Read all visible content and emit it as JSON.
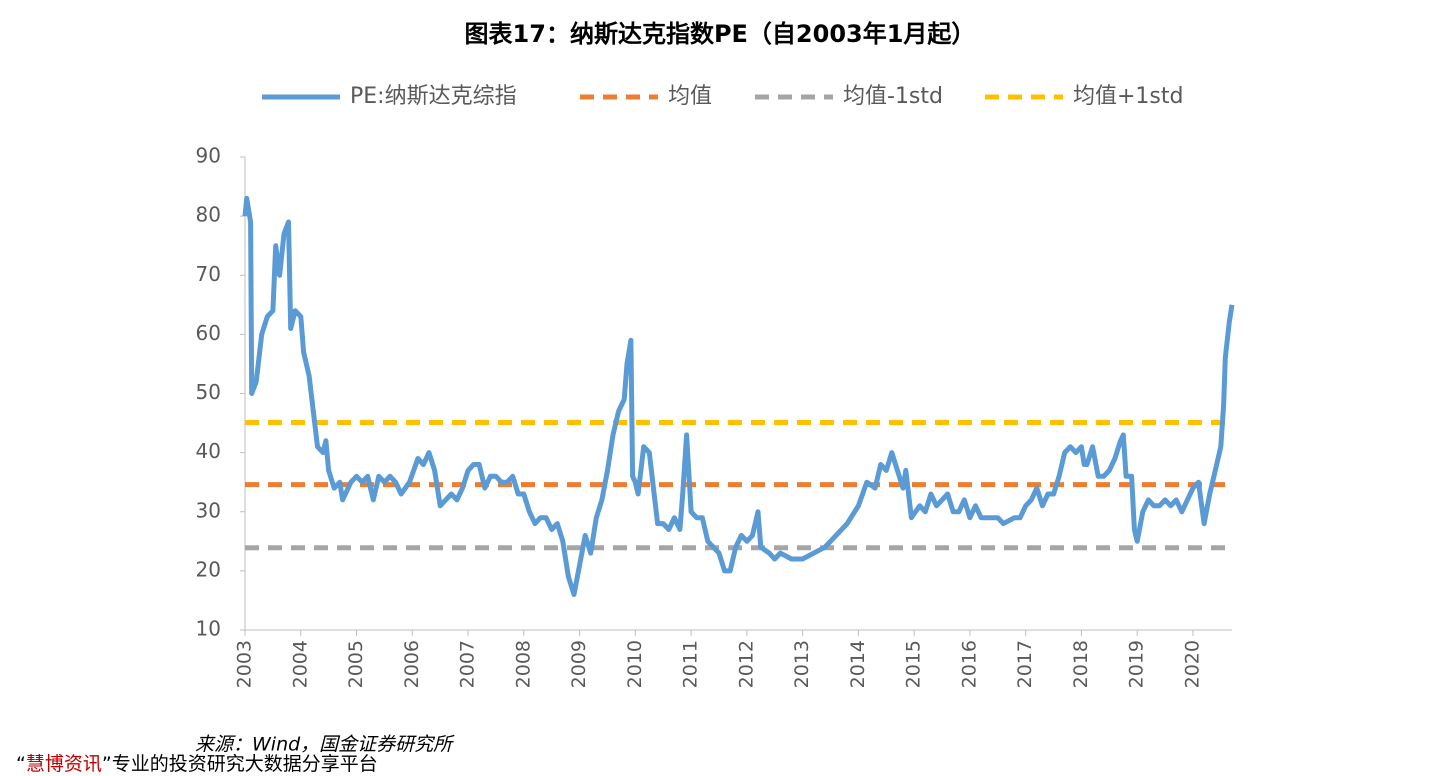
{
  "chart_data": {
    "type": "line",
    "title": "图表17：纳斯达克指数PE（自2003年1月起）",
    "xlim": [
      2003,
      2020.7
    ],
    "xticks": [
      2003,
      2004,
      2005,
      2006,
      2007,
      2008,
      2009,
      2010,
      2011,
      2012,
      2013,
      2014,
      2015,
      2016,
      2017,
      2018,
      2019,
      2020
    ],
    "ylim": [
      10,
      90
    ],
    "yticks": [
      10,
      20,
      30,
      40,
      50,
      60,
      70,
      80,
      90
    ],
    "legend": "top",
    "series": [
      {
        "name": "PE:纳斯达克综指",
        "color": "#5b9bd5",
        "dash": false,
        "x": [
          2003.0,
          2003.03,
          2003.1,
          2003.12,
          2003.2,
          2003.3,
          2003.4,
          2003.5,
          2003.55,
          2003.62,
          2003.7,
          2003.78,
          2003.82,
          2003.9,
          2004.0,
          2004.05,
          2004.15,
          2004.25,
          2004.3,
          2004.4,
          2004.45,
          2004.5,
          2004.6,
          2004.7,
          2004.75,
          2004.9,
          2005.0,
          2005.1,
          2005.2,
          2005.3,
          2005.4,
          2005.5,
          2005.6,
          2005.7,
          2005.8,
          2005.95,
          2006.1,
          2006.2,
          2006.3,
          2006.4,
          2006.5,
          2006.6,
          2006.7,
          2006.8,
          2006.9,
          2007.0,
          2007.1,
          2007.2,
          2007.3,
          2007.4,
          2007.5,
          2007.6,
          2007.7,
          2007.8,
          2007.9,
          2008.0,
          2008.1,
          2008.2,
          2008.3,
          2008.4,
          2008.5,
          2008.6,
          2008.7,
          2008.8,
          2008.9,
          2009.0,
          2009.1,
          2009.2,
          2009.3,
          2009.4,
          2009.5,
          2009.6,
          2009.7,
          2009.8,
          2009.85,
          2009.92,
          2009.95,
          2010.0,
          2010.05,
          2010.15,
          2010.25,
          2010.4,
          2010.5,
          2010.6,
          2010.7,
          2010.8,
          2010.85,
          2010.92,
          2011.0,
          2011.1,
          2011.2,
          2011.3,
          2011.5,
          2011.6,
          2011.7,
          2011.8,
          2011.9,
          2012.0,
          2012.1,
          2012.2,
          2012.25,
          2012.4,
          2012.5,
          2012.6,
          2012.8,
          2013.0,
          2013.2,
          2013.4,
          2013.6,
          2013.8,
          2014.0,
          2014.15,
          2014.3,
          2014.4,
          2014.5,
          2014.6,
          2014.7,
          2014.8,
          2014.85,
          2014.95,
          2015.1,
          2015.2,
          2015.3,
          2015.4,
          2015.5,
          2015.6,
          2015.7,
          2015.8,
          2015.9,
          2016.0,
          2016.1,
          2016.2,
          2016.4,
          2016.5,
          2016.6,
          2016.8,
          2016.9,
          2017.0,
          2017.1,
          2017.2,
          2017.3,
          2017.4,
          2017.5,
          2017.6,
          2017.7,
          2017.8,
          2017.9,
          2018.0,
          2018.05,
          2018.1,
          2018.2,
          2018.3,
          2018.4,
          2018.5,
          2018.6,
          2018.7,
          2018.75,
          2018.8,
          2018.9,
          2018.95,
          2019.0,
          2019.1,
          2019.2,
          2019.3,
          2019.4,
          2019.5,
          2019.6,
          2019.7,
          2019.8,
          2019.9,
          2020.0,
          2020.1,
          2020.2,
          2020.3,
          2020.4,
          2020.5,
          2020.55,
          2020.58,
          2020.65,
          2020.7
        ],
        "values": [
          80,
          83,
          79,
          50,
          52,
          60,
          63,
          64,
          75,
          70,
          77,
          79,
          61,
          64,
          63,
          57,
          53,
          45,
          41,
          40,
          42,
          37,
          34,
          35,
          32,
          35,
          36,
          35,
          36,
          32,
          36,
          35,
          36,
          35,
          33,
          35,
          39,
          38,
          40,
          37,
          31,
          32,
          33,
          32,
          34,
          37,
          38,
          38,
          34,
          36,
          36,
          35,
          35,
          36,
          33,
          33,
          30,
          28,
          29,
          29,
          27,
          28,
          25,
          19,
          16,
          21,
          26,
          23,
          29,
          32,
          37,
          43,
          47,
          49,
          55,
          59,
          36,
          35,
          33,
          41,
          40,
          28,
          28,
          27,
          29,
          27,
          33,
          43,
          30,
          29,
          29,
          25,
          23,
          20,
          20,
          24,
          26,
          25,
          26,
          30,
          24,
          23,
          22,
          23,
          22,
          22,
          23,
          24,
          26,
          28,
          31,
          35,
          34,
          38,
          37,
          40,
          37,
          34,
          37,
          29,
          31,
          30,
          33,
          31,
          32,
          33,
          30,
          30,
          32,
          29,
          31,
          29,
          29,
          29,
          28,
          29,
          29,
          31,
          32,
          34,
          31,
          33,
          33,
          36,
          40,
          41,
          40,
          41,
          38,
          38,
          41,
          36,
          36,
          37,
          39,
          42,
          43,
          36,
          36,
          27,
          25,
          30,
          32,
          31,
          31,
          32,
          31,
          32,
          30,
          32,
          34,
          35,
          28,
          33,
          37,
          41,
          48,
          56,
          62,
          65
        ]
      },
      {
        "name": "均值",
        "color": "#ed7d31",
        "dash": true,
        "x": [
          2003,
          2020.7
        ],
        "values": [
          34.6,
          34.6
        ]
      },
      {
        "name": "均值-1std",
        "color": "#a5a5a5",
        "dash": true,
        "x": [
          2003,
          2020.7
        ],
        "values": [
          23.9,
          23.9
        ]
      },
      {
        "name": "均值+1std",
        "color": "#ffc000",
        "dash": true,
        "x": [
          2003,
          2020.7
        ],
        "values": [
          45.1,
          45.1
        ]
      }
    ],
    "source": "来源：Wind，国金证券研究所"
  },
  "footer": {
    "open": "“",
    "brand": "慧博资讯",
    "rest": "”专业的投资研究大数据分享平台"
  }
}
